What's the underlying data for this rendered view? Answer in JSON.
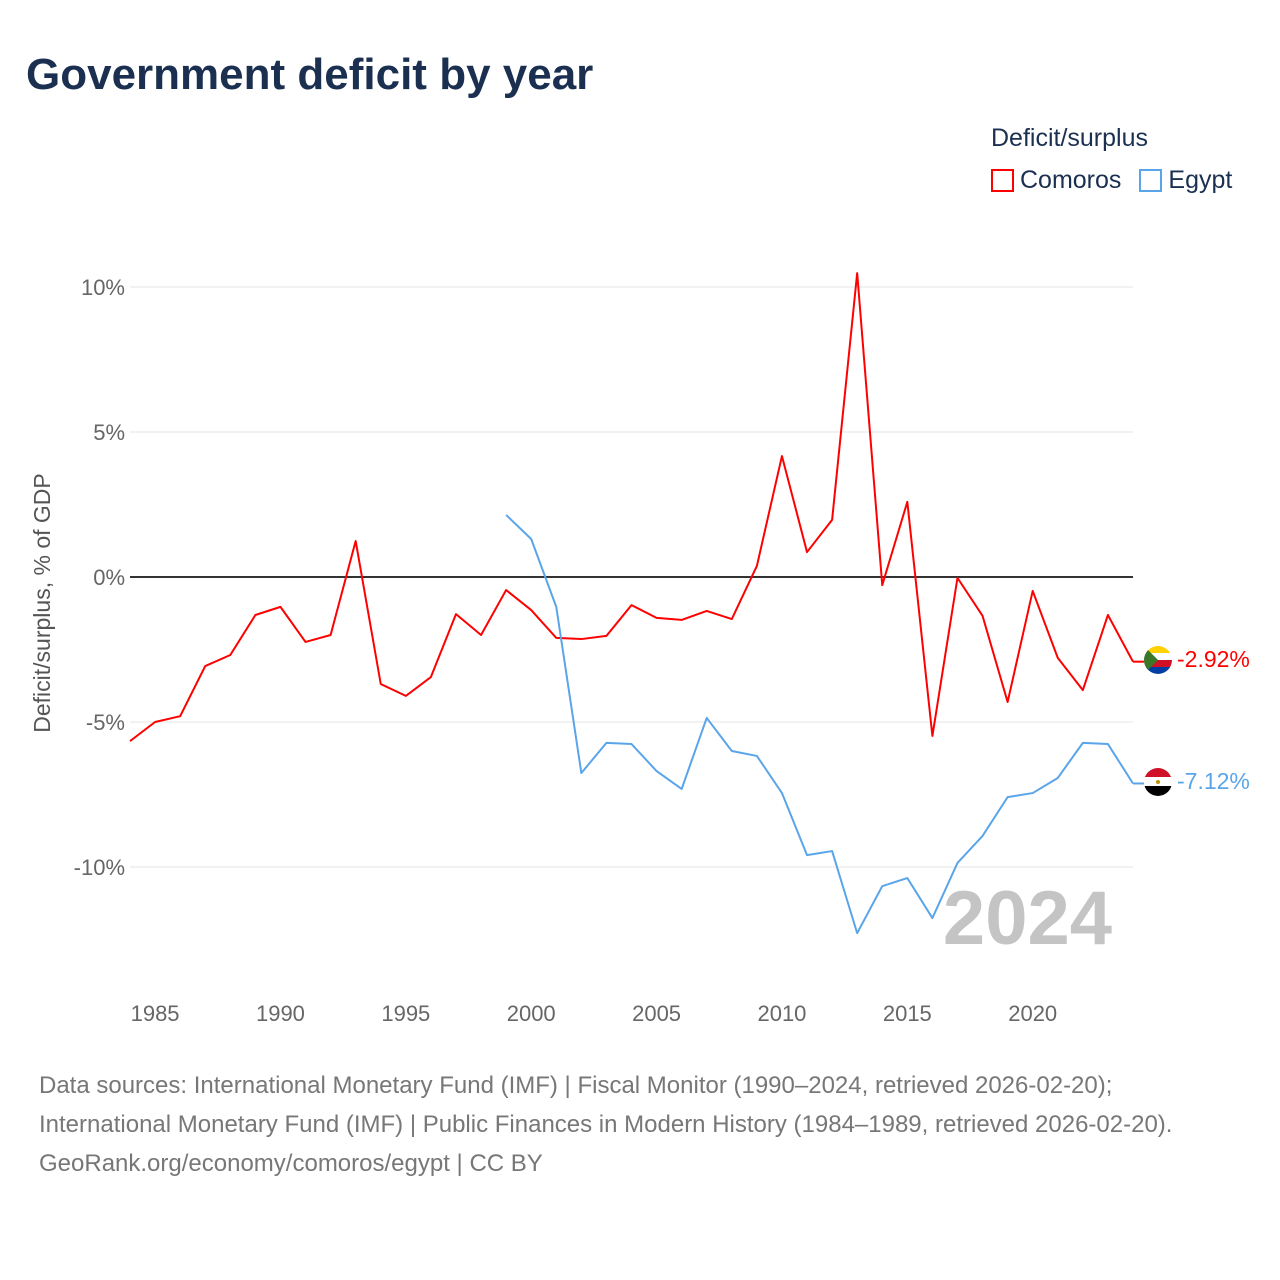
{
  "title": "Government deficit by year",
  "legend": {
    "title": "Deficit/surplus",
    "items": [
      {
        "label": "Comoros",
        "color": "#ff0000"
      },
      {
        "label": "Egypt",
        "color": "#5aa5ea"
      }
    ]
  },
  "year_watermark": "2024",
  "source": {
    "line1": "Data sources: International Monetary Fund (IMF) | Fiscal Monitor (1990–2024, retrieved 2026-02-20); International Monetary Fund (IMF) | Public Finances in Modern History (1984–1989, retrieved 2026-02-20).",
    "line2": "GeoRank.org/economy/comoros/egypt | CC BY"
  },
  "chart_data": {
    "type": "line",
    "title": "Government deficit by year",
    "xlabel": "",
    "ylabel": "Deficit/surplus, % of GDP",
    "xlim": [
      1984,
      2024
    ],
    "ylim": [
      -13.5,
      10.5
    ],
    "xticks": [
      1985,
      1990,
      1995,
      2000,
      2005,
      2010,
      2015,
      2020
    ],
    "yticks": [
      10,
      5,
      0,
      -5,
      -10
    ],
    "ytick_labels": [
      "10%",
      "5%",
      "0%",
      "-5%",
      "-10%"
    ],
    "series": [
      {
        "name": "Comoros",
        "color": "#ff0000",
        "end_label": "-2.92%",
        "x": [
          1984,
          1985,
          1986,
          1987,
          1988,
          1989,
          1990,
          1991,
          1992,
          1993,
          1994,
          1995,
          1996,
          1997,
          1998,
          1999,
          2000,
          2001,
          2002,
          2003,
          2004,
          2005,
          2006,
          2007,
          2008,
          2009,
          2010,
          2011,
          2012,
          2013,
          2014,
          2015,
          2016,
          2017,
          2018,
          2019,
          2020,
          2021,
          2022,
          2023,
          2024
        ],
        "values": [
          -5.66,
          -5.0,
          -4.8,
          -3.07,
          -2.69,
          -1.31,
          -1.03,
          -2.24,
          -2.0,
          1.24,
          -3.69,
          -4.1,
          -3.45,
          -1.28,
          -2.0,
          -0.45,
          -1.14,
          -2.1,
          -2.14,
          -2.03,
          -0.97,
          -1.41,
          -1.48,
          -1.17,
          -1.45,
          0.38,
          4.17,
          0.86,
          1.97,
          10.48,
          -0.28,
          2.59,
          -5.48,
          -0.03,
          -1.34,
          -4.31,
          -0.48,
          -2.79,
          -3.9,
          -1.31,
          -2.92
        ]
      },
      {
        "name": "Egypt",
        "color": "#5aa5ea",
        "end_label": "-7.12%",
        "x": [
          1999,
          2000,
          2001,
          2002,
          2003,
          2004,
          2005,
          2006,
          2007,
          2008,
          2009,
          2010,
          2011,
          2012,
          2013,
          2014,
          2015,
          2016,
          2017,
          2018,
          2019,
          2020,
          2021,
          2022,
          2023,
          2024
        ],
        "values": [
          2.14,
          1.31,
          -1.03,
          -6.76,
          -5.72,
          -5.76,
          -6.69,
          -7.31,
          -4.86,
          -6.0,
          -6.17,
          -7.45,
          -9.59,
          -9.45,
          -12.28,
          -10.66,
          -10.38,
          -11.76,
          -9.86,
          -8.93,
          -7.59,
          -7.45,
          -6.93,
          -5.72,
          -5.76,
          -7.12
        ]
      }
    ]
  }
}
